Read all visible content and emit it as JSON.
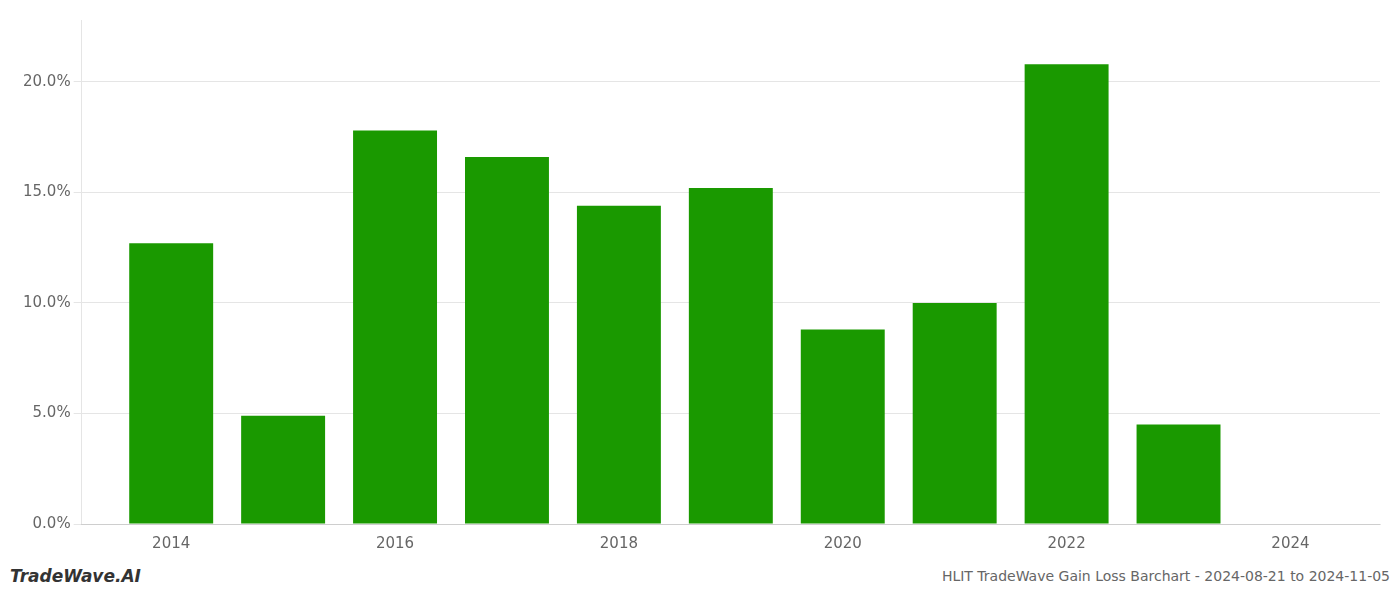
{
  "chart_data": {
    "type": "bar",
    "title": "HLIT TradeWave Gain Loss Barchart - 2024-08-21 to 2024-11-05",
    "annotations": [
      "TradeWave.AI"
    ],
    "x": [
      2014,
      2015,
      2016,
      2017,
      2018,
      2019,
      2020,
      2021,
      2022,
      2023
    ],
    "values": [
      0.127,
      0.049,
      0.178,
      0.166,
      0.144,
      0.152,
      0.088,
      0.1,
      0.208,
      0.045
    ],
    "color": "#1a9900",
    "xlim": [
      2013.2,
      2024.8
    ],
    "xticks": [
      2014,
      2016,
      2018,
      2020,
      2022,
      2024
    ],
    "ylim": [
      0,
      0.228
    ],
    "yticks": [
      {
        "value": 0.0,
        "label": "0.0%"
      },
      {
        "value": 0.05,
        "label": "5.0%"
      },
      {
        "value": 0.1,
        "label": "10.0%"
      },
      {
        "value": 0.15,
        "label": "15.0%"
      },
      {
        "value": 0.2,
        "label": "20.0%"
      }
    ],
    "grid": true
  }
}
